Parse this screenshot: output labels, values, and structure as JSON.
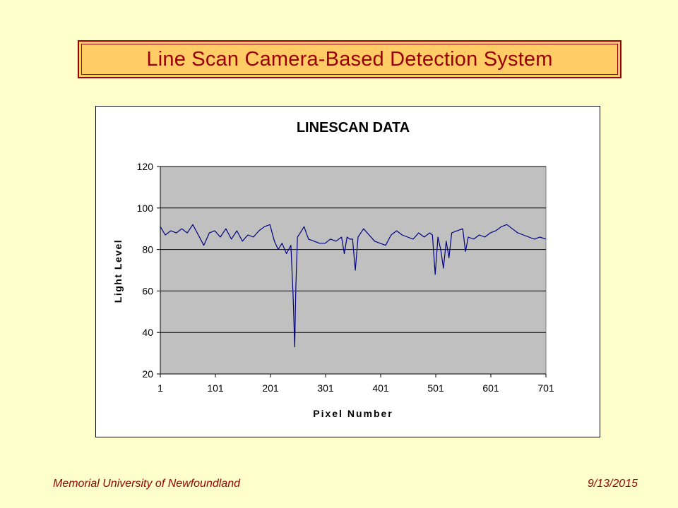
{
  "slide": {
    "title": "Line Scan Camera-Based Detection System",
    "footer_left": "Memorial University of Newfoundland",
    "footer_right": "9/13/2015"
  },
  "colors": {
    "background": "#FFFFCC",
    "title_fill": "#FFCC66",
    "title_text": "#990000",
    "plot_area": "#C0C0C0",
    "series": "#000080"
  },
  "chart_data": {
    "type": "line",
    "title": "LINESCAN DATA",
    "xlabel": "Pixel Number",
    "ylabel": "Light Level",
    "xlim": [
      1,
      701
    ],
    "ylim": [
      20,
      120
    ],
    "xticks": [
      1,
      101,
      201,
      301,
      401,
      501,
      601,
      701
    ],
    "yticks": [
      20,
      40,
      60,
      80,
      100,
      120
    ],
    "grid": "horizontal",
    "legend": "none",
    "series": [
      {
        "x": [
          1,
          10,
          20,
          30,
          40,
          50,
          60,
          70,
          80,
          90,
          100,
          110,
          120,
          130,
          140,
          150,
          160,
          170,
          180,
          190,
          200,
          208,
          215,
          222,
          230,
          238,
          242,
          245,
          247,
          250,
          255,
          262,
          270,
          280,
          290,
          300,
          310,
          320,
          330,
          335,
          340,
          345,
          350,
          355,
          360,
          370,
          380,
          390,
          400,
          410,
          420,
          430,
          440,
          450,
          460,
          470,
          480,
          490,
          495,
          500,
          505,
          510,
          515,
          520,
          525,
          530,
          540,
          550,
          555,
          560,
          570,
          580,
          590,
          600,
          610,
          620,
          630,
          640,
          650,
          660,
          670,
          680,
          690,
          701
        ],
        "y": [
          91,
          87,
          89,
          88,
          90,
          88,
          92,
          87,
          82,
          88,
          89,
          86,
          90,
          85,
          89,
          84,
          87,
          86,
          89,
          91,
          92,
          84,
          80,
          83,
          78,
          82,
          58,
          33,
          62,
          86,
          88,
          91,
          85,
          84,
          83,
          83,
          85,
          84,
          86,
          78,
          86,
          85,
          85,
          70,
          86,
          90,
          87,
          84,
          83,
          82,
          87,
          89,
          87,
          86,
          85,
          88,
          86,
          88,
          87,
          68,
          86,
          80,
          71,
          84,
          76,
          88,
          89,
          90,
          79,
          86,
          85,
          87,
          86,
          88,
          89,
          91,
          92,
          90,
          88,
          87,
          86,
          85,
          86,
          85
        ]
      }
    ]
  }
}
